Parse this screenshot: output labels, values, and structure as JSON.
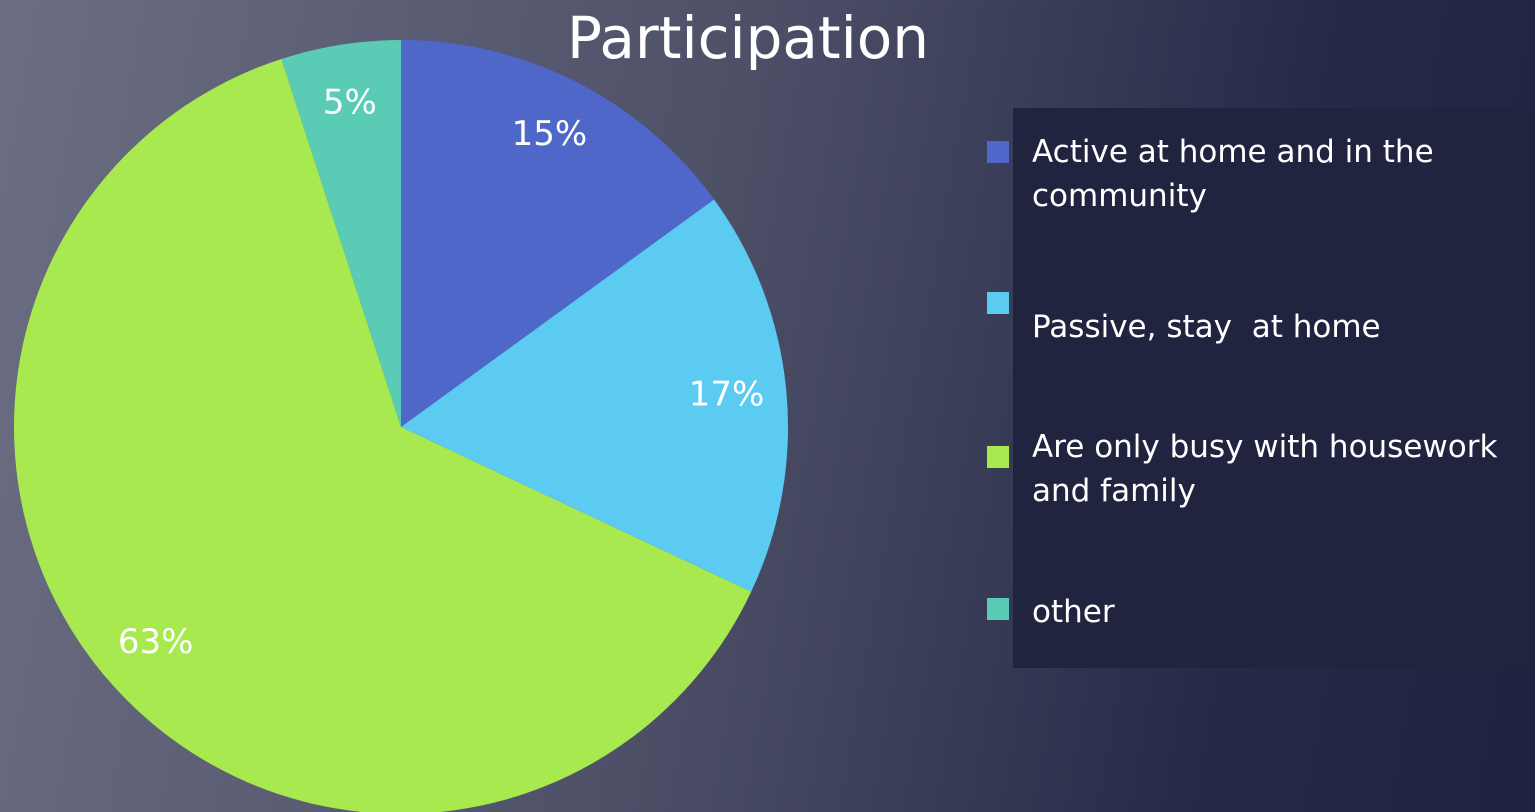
{
  "chart_data": {
    "type": "pie",
    "title": "Participation",
    "categories": [
      "Active at home and in the community",
      "Passive, stay  at home",
      "Are only busy with housework and family",
      "other"
    ],
    "values": [
      15,
      17,
      63,
      5
    ],
    "value_labels": [
      "15%",
      "17%",
      "63%",
      "5%"
    ],
    "colors": [
      "#4f67c9",
      "#5bcbf2",
      "#a8e94f",
      "#5acbb4"
    ],
    "legend": "right"
  }
}
